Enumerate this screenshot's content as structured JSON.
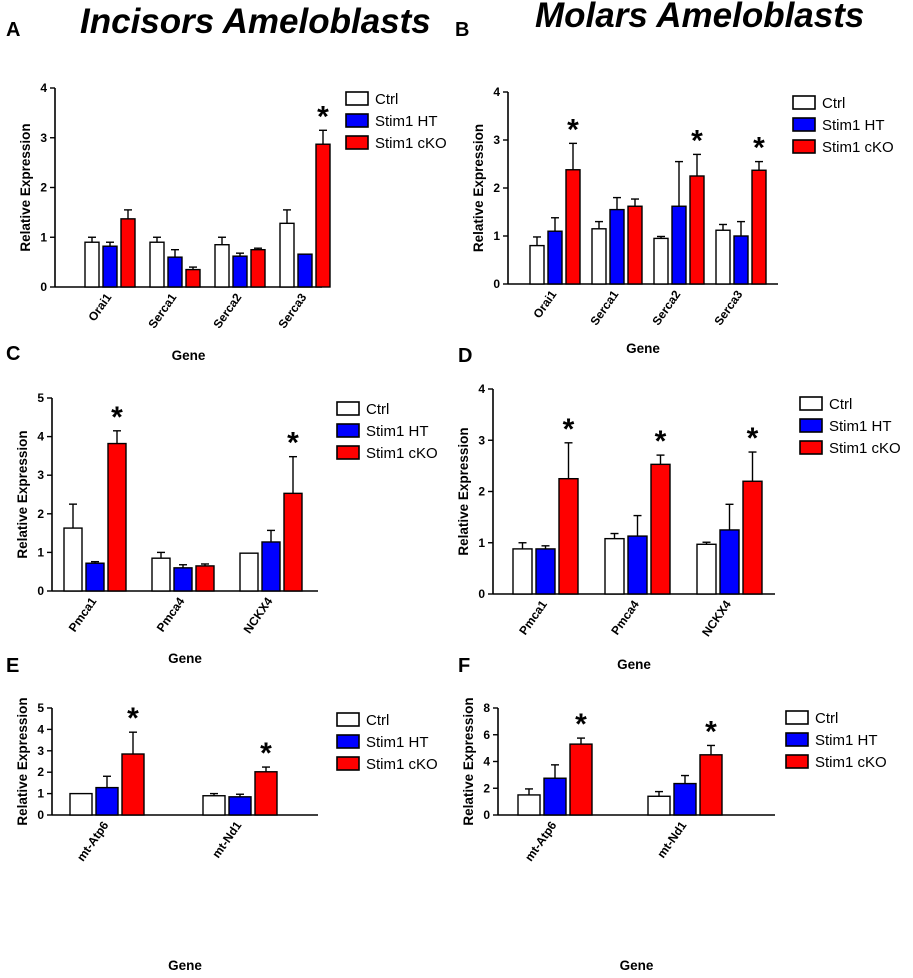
{
  "titles": {
    "left": "Incisors Ameloblasts",
    "right": "Molars Ameloblasts"
  },
  "legend": [
    {
      "name": "Ctrl",
      "color": "#ffffff"
    },
    {
      "name": "Stim1 HT",
      "color": "#0000ff"
    },
    {
      "name": "Stim1 cKO",
      "color": "#ff0000"
    }
  ],
  "chart_data": [
    {
      "panel": "A",
      "type": "bar",
      "xlabel": "Gene",
      "ylabel": "Relative Expression",
      "ylim": [
        0,
        4
      ],
      "yticks": [
        0,
        1,
        2,
        3,
        4
      ],
      "categories": [
        "Orai1",
        "Serca1",
        "Serca2",
        "Serca3"
      ],
      "series": [
        {
          "name": "Ctrl",
          "values": [
            0.9,
            0.9,
            0.85,
            1.28
          ],
          "errors": [
            0.1,
            0.1,
            0.15,
            0.27
          ]
        },
        {
          "name": "Stim1 HT",
          "values": [
            0.82,
            0.6,
            0.62,
            0.66
          ],
          "errors": [
            0.08,
            0.15,
            0.06,
            0.0
          ]
        },
        {
          "name": "Stim1 cKO",
          "values": [
            1.37,
            0.35,
            0.75,
            2.87
          ],
          "errors": [
            0.18,
            0.05,
            0.03,
            0.28
          ]
        }
      ],
      "significance": [
        "",
        "",
        "",
        "*"
      ]
    },
    {
      "panel": "B",
      "type": "bar",
      "xlabel": "Gene",
      "ylabel": "Relative Expression",
      "ylim": [
        0,
        4
      ],
      "yticks": [
        0,
        1,
        2,
        3,
        4
      ],
      "categories": [
        "Orai1",
        "Serca1",
        "Serca2",
        "Serca3"
      ],
      "series": [
        {
          "name": "Ctrl",
          "values": [
            0.8,
            1.15,
            0.95,
            1.12
          ],
          "errors": [
            0.18,
            0.15,
            0.04,
            0.12
          ]
        },
        {
          "name": "Stim1 HT",
          "values": [
            1.1,
            1.55,
            1.62,
            1.0
          ],
          "errors": [
            0.28,
            0.25,
            0.93,
            0.3
          ]
        },
        {
          "name": "Stim1 cKO",
          "values": [
            2.38,
            1.62,
            2.25,
            2.37
          ],
          "errors": [
            0.55,
            0.15,
            0.45,
            0.18
          ]
        }
      ],
      "significance": [
        "*",
        "",
        "*",
        "*"
      ]
    },
    {
      "panel": "C",
      "type": "bar",
      "xlabel": "Gene",
      "ylabel": "Relative Expression",
      "ylim": [
        0,
        5
      ],
      "yticks": [
        0,
        1,
        2,
        3,
        4,
        5
      ],
      "categories": [
        "Pmca1",
        "Pmca4",
        "NCKX4"
      ],
      "series": [
        {
          "name": "Ctrl",
          "values": [
            1.63,
            0.85,
            0.98
          ],
          "errors": [
            0.62,
            0.15,
            0.0
          ]
        },
        {
          "name": "Stim1 HT",
          "values": [
            0.72,
            0.6,
            1.27
          ],
          "errors": [
            0.04,
            0.08,
            0.3
          ]
        },
        {
          "name": "Stim1 cKO",
          "values": [
            3.82,
            0.65,
            2.53
          ],
          "errors": [
            0.33,
            0.05,
            0.95
          ]
        }
      ],
      "significance": [
        "*",
        "",
        "*"
      ]
    },
    {
      "panel": "D",
      "type": "bar",
      "xlabel": "Gene",
      "ylabel": "Relative Expression",
      "ylim": [
        0,
        4
      ],
      "yticks": [
        0,
        1,
        2,
        3,
        4
      ],
      "categories": [
        "Pmca1",
        "Pmca4",
        "NCKX4"
      ],
      "series": [
        {
          "name": "Ctrl",
          "values": [
            0.88,
            1.08,
            0.97
          ],
          "errors": [
            0.12,
            0.1,
            0.04
          ]
        },
        {
          "name": "Stim1 HT",
          "values": [
            0.88,
            1.13,
            1.25
          ],
          "errors": [
            0.06,
            0.4,
            0.5
          ]
        },
        {
          "name": "Stim1 cKO",
          "values": [
            2.25,
            2.53,
            2.2
          ],
          "errors": [
            0.7,
            0.18,
            0.57
          ]
        }
      ],
      "significance": [
        "*",
        "*",
        "*"
      ]
    },
    {
      "panel": "E",
      "type": "bar",
      "xlabel": "Gene",
      "ylabel": "Relative Expression",
      "ylim": [
        0,
        5
      ],
      "yticks": [
        0,
        1,
        2,
        3,
        4,
        5
      ],
      "categories": [
        "mt-Atp6",
        "mt-Nd1"
      ],
      "series": [
        {
          "name": "Ctrl",
          "values": [
            1.0,
            0.9
          ],
          "errors": [
            0.0,
            0.1
          ]
        },
        {
          "name": "Stim1 HT",
          "values": [
            1.28,
            0.85
          ],
          "errors": [
            0.53,
            0.12
          ]
        },
        {
          "name": "Stim1 cKO",
          "values": [
            2.85,
            2.02
          ],
          "errors": [
            1.02,
            0.22
          ]
        }
      ],
      "significance": [
        "*",
        "*"
      ]
    },
    {
      "panel": "F",
      "type": "bar",
      "xlabel": "Gene",
      "ylabel": "Relative Expression",
      "ylim": [
        0,
        8
      ],
      "yticks": [
        0,
        2,
        4,
        6,
        8
      ],
      "categories": [
        "mt-Atp6",
        "mt-Nd1"
      ],
      "series": [
        {
          "name": "Ctrl",
          "values": [
            1.5,
            1.4
          ],
          "errors": [
            0.45,
            0.35
          ]
        },
        {
          "name": "Stim1 HT",
          "values": [
            2.75,
            2.35
          ],
          "errors": [
            1.0,
            0.6
          ]
        },
        {
          "name": "Stim1 cKO",
          "values": [
            5.3,
            4.5
          ],
          "errors": [
            0.45,
            0.7
          ]
        }
      ],
      "significance": [
        "*",
        "*"
      ]
    }
  ]
}
